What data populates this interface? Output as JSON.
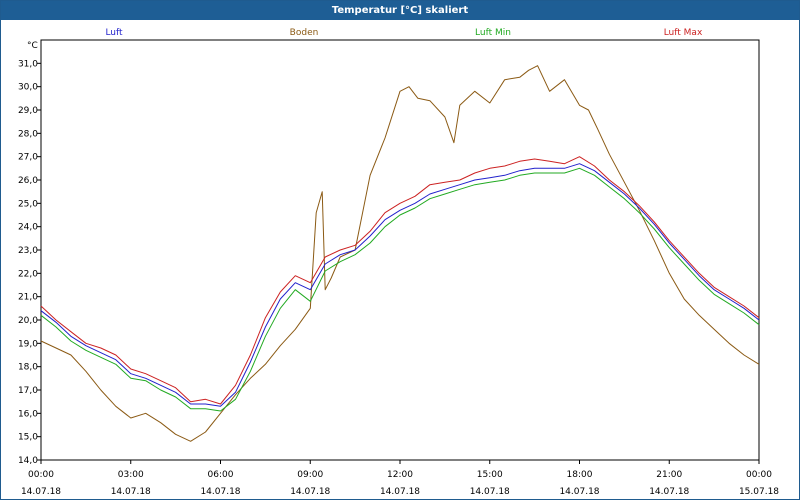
{
  "window": {
    "title": "Temperatur [°C] skaliert"
  },
  "chart_data": {
    "type": "line",
    "title": "Temperatur [°C] skaliert",
    "ylabel": "°C",
    "xlabel": "",
    "ylim": [
      14.0,
      32.0
    ],
    "xlim_hours": [
      0,
      24
    ],
    "y_ticks": [
      "14,0",
      "15,0",
      "16,0",
      "17,0",
      "18,0",
      "19,0",
      "20,0",
      "21,0",
      "22,0",
      "23,0",
      "24,0",
      "25,0",
      "26,0",
      "27,0",
      "28,0",
      "29,0",
      "30,0",
      "31,0"
    ],
    "x_ticks": [
      {
        "hour": 0,
        "time": "00:00",
        "date": "14.07.18"
      },
      {
        "hour": 3,
        "time": "03:00",
        "date": "14.07.18"
      },
      {
        "hour": 6,
        "time": "06:00",
        "date": "14.07.18"
      },
      {
        "hour": 9,
        "time": "09:00",
        "date": "14.07.18"
      },
      {
        "hour": 12,
        "time": "12:00",
        "date": "14.07.18"
      },
      {
        "hour": 15,
        "time": "15:00",
        "date": "14.07.18"
      },
      {
        "hour": 18,
        "time": "18:00",
        "date": "14.07.18"
      },
      {
        "hour": 21,
        "time": "21:00",
        "date": "14.07.18"
      },
      {
        "hour": 24,
        "time": "00:00",
        "date": "15.07.18"
      }
    ],
    "grid": true,
    "legend_position": "top",
    "series": [
      {
        "name": "Luft",
        "color": "#2222cc",
        "x": [
          0,
          0.5,
          1,
          1.5,
          2,
          2.5,
          3,
          3.5,
          4,
          4.5,
          5,
          5.5,
          6,
          6.5,
          7,
          7.5,
          8,
          8.5,
          9,
          9.5,
          10,
          10.5,
          11,
          11.5,
          12,
          12.5,
          13,
          13.5,
          14,
          14.5,
          15,
          15.5,
          16,
          16.5,
          17,
          17.5,
          18,
          18.5,
          19,
          19.5,
          20,
          20.5,
          21,
          21.5,
          22,
          22.5,
          23,
          23.5,
          24
        ],
        "y": [
          20.4,
          19.9,
          19.3,
          18.9,
          18.6,
          18.3,
          17.7,
          17.5,
          17.2,
          16.9,
          16.4,
          16.4,
          16.3,
          16.9,
          18.2,
          19.7,
          20.9,
          21.6,
          21.3,
          22.4,
          22.8,
          23.0,
          23.6,
          24.3,
          24.7,
          25.0,
          25.4,
          25.6,
          25.8,
          26.0,
          26.1,
          26.2,
          26.4,
          26.5,
          26.5,
          26.5,
          26.7,
          26.4,
          25.9,
          25.4,
          24.8,
          24.1,
          23.3,
          22.6,
          21.9,
          21.3,
          20.9,
          20.5,
          20.0
        ]
      },
      {
        "name": "Boden",
        "color": "#8b5a14",
        "x": [
          0,
          0.5,
          1,
          1.5,
          2,
          2.5,
          3,
          3.5,
          4,
          4.5,
          5,
          5.5,
          6,
          6.5,
          7,
          7.5,
          8,
          8.5,
          9,
          9.2,
          9.4,
          9.5,
          9.7,
          10,
          10.5,
          11,
          11.5,
          12,
          12.3,
          12.6,
          13,
          13.5,
          13.8,
          14,
          14.5,
          15,
          15.5,
          16,
          16.3,
          16.6,
          17,
          17.5,
          18,
          18.3,
          18.6,
          19,
          19.5,
          20,
          20.5,
          21,
          21.5,
          22,
          22.5,
          23,
          23.5,
          24
        ],
        "y": [
          19.1,
          18.8,
          18.5,
          17.8,
          17.0,
          16.3,
          15.8,
          16.0,
          15.6,
          15.1,
          14.8,
          15.2,
          16.0,
          16.8,
          17.5,
          18.1,
          18.9,
          19.6,
          20.5,
          24.6,
          25.5,
          21.3,
          21.8,
          22.7,
          23.0,
          26.2,
          27.8,
          29.8,
          30.0,
          29.5,
          29.4,
          28.7,
          27.6,
          29.2,
          29.8,
          29.3,
          30.3,
          30.4,
          30.7,
          30.9,
          29.8,
          30.3,
          29.2,
          29.0,
          28.2,
          27.1,
          25.9,
          24.7,
          23.4,
          22.0,
          20.9,
          20.2,
          19.6,
          19.0,
          18.5,
          18.1
        ]
      },
      {
        "name": "Luft Min",
        "color": "#22aa22",
        "x": [
          0,
          0.5,
          1,
          1.5,
          2,
          2.5,
          3,
          3.5,
          4,
          4.5,
          5,
          5.5,
          6,
          6.5,
          7,
          7.5,
          8,
          8.5,
          9,
          9.5,
          10,
          10.5,
          11,
          11.5,
          12,
          12.5,
          13,
          13.5,
          14,
          14.5,
          15,
          15.5,
          16,
          16.5,
          17,
          17.5,
          18,
          18.5,
          19,
          19.5,
          20,
          20.5,
          21,
          21.5,
          22,
          22.5,
          23,
          23.5,
          24
        ],
        "y": [
          20.2,
          19.7,
          19.1,
          18.7,
          18.4,
          18.1,
          17.5,
          17.4,
          17.0,
          16.7,
          16.2,
          16.2,
          16.1,
          16.6,
          17.8,
          19.3,
          20.5,
          21.3,
          20.8,
          22.1,
          22.5,
          22.8,
          23.3,
          24.0,
          24.5,
          24.8,
          25.2,
          25.4,
          25.6,
          25.8,
          25.9,
          26.0,
          26.2,
          26.3,
          26.3,
          26.3,
          26.5,
          26.2,
          25.7,
          25.2,
          24.6,
          23.9,
          23.1,
          22.4,
          21.7,
          21.1,
          20.7,
          20.3,
          19.8
        ]
      },
      {
        "name": "Luft Max",
        "color": "#cc2222",
        "x": [
          0,
          0.5,
          1,
          1.5,
          2,
          2.5,
          3,
          3.5,
          4,
          4.5,
          5,
          5.5,
          6,
          6.5,
          7,
          7.5,
          8,
          8.5,
          9,
          9.5,
          10,
          10.5,
          11,
          11.5,
          12,
          12.5,
          13,
          13.5,
          14,
          14.5,
          15,
          15.5,
          16,
          16.5,
          17,
          17.5,
          18,
          18.5,
          19,
          19.5,
          20,
          20.5,
          21,
          21.5,
          22,
          22.5,
          23,
          23.5,
          24
        ],
        "y": [
          20.6,
          20.0,
          19.5,
          19.0,
          18.8,
          18.5,
          17.9,
          17.7,
          17.4,
          17.1,
          16.5,
          16.6,
          16.4,
          17.2,
          18.5,
          20.1,
          21.2,
          21.9,
          21.6,
          22.7,
          23.0,
          23.2,
          23.8,
          24.6,
          25.0,
          25.3,
          25.8,
          25.9,
          26.0,
          26.3,
          26.5,
          26.6,
          26.8,
          26.9,
          26.8,
          26.7,
          27.0,
          26.6,
          26.0,
          25.5,
          24.9,
          24.2,
          23.4,
          22.7,
          22.0,
          21.4,
          21.0,
          20.6,
          20.1
        ]
      }
    ]
  }
}
